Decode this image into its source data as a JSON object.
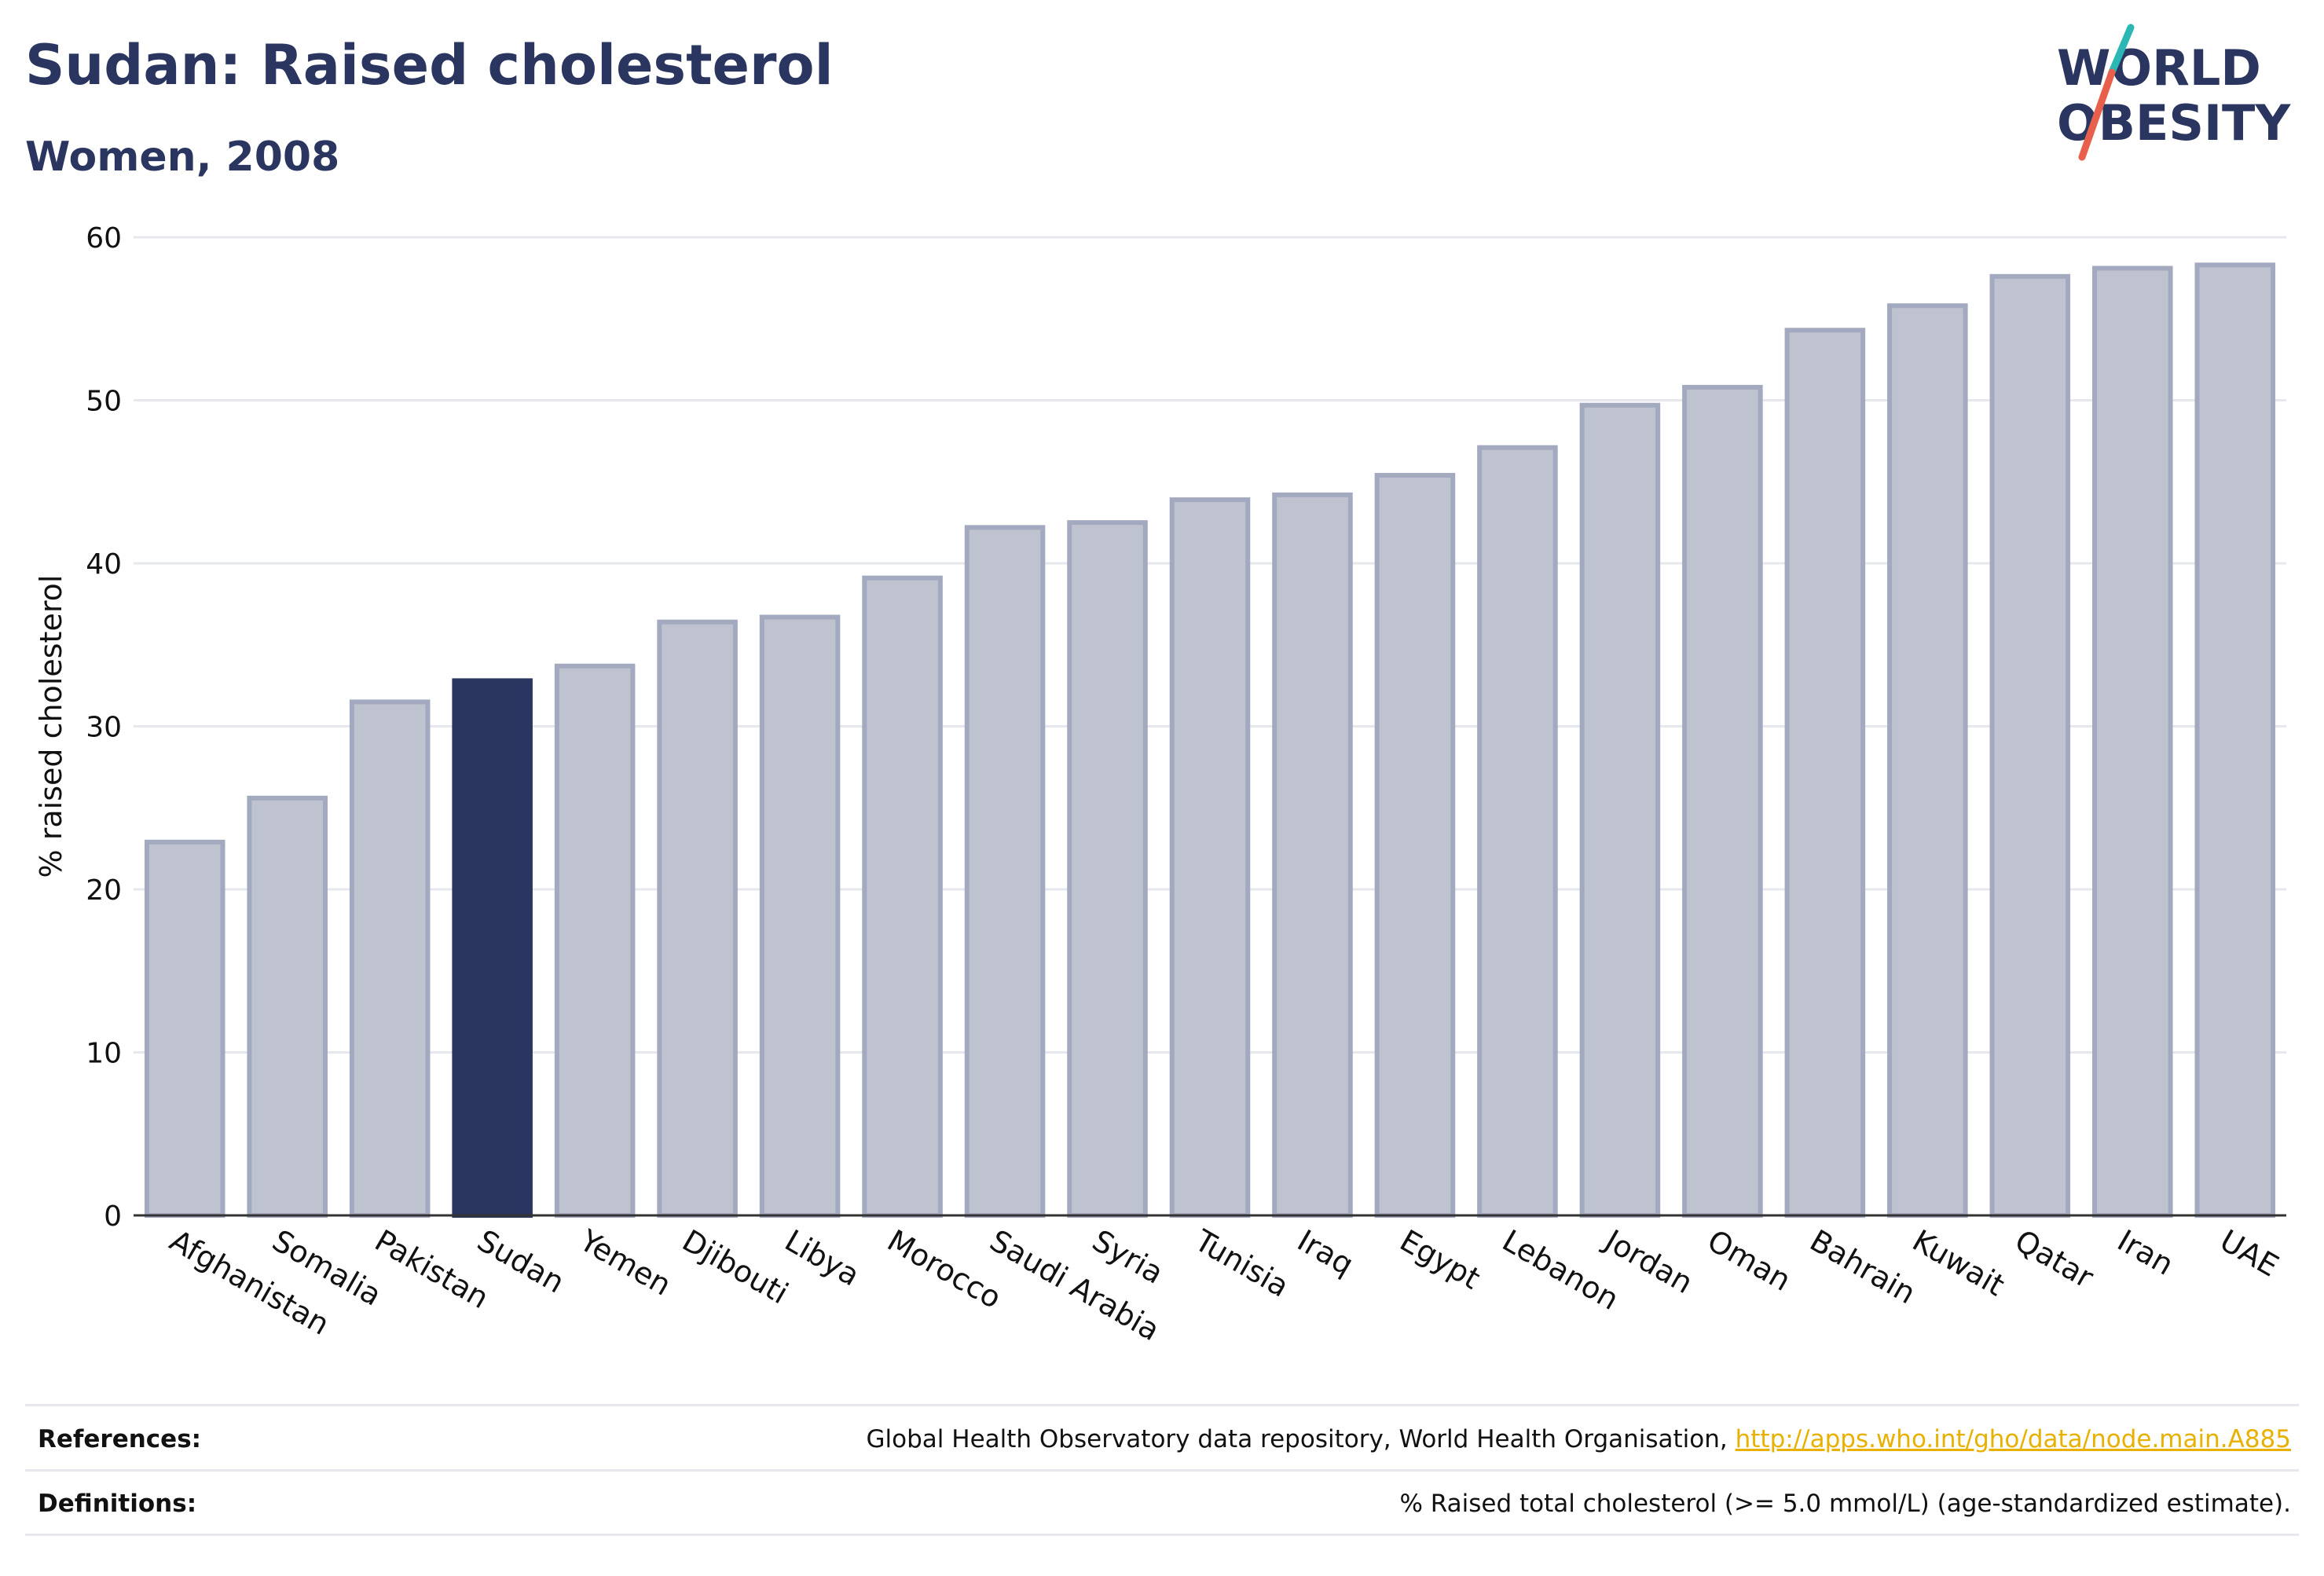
{
  "header": {
    "title": "Sudan: Raised cholesterol",
    "subtitle": "Women, 2008"
  },
  "logo": {
    "line1": "WORLD",
    "line2": "OBESITY",
    "colors": {
      "text": "#2a3560",
      "slash_top": "#2bb7b3",
      "slash_bottom": "#e8604c"
    }
  },
  "chart_data": {
    "type": "bar",
    "categories": [
      "Afghanistan",
      "Somalia",
      "Pakistan",
      "Sudan",
      "Yemen",
      "Djibouti",
      "Libya",
      "Morocco",
      "Saudi Arabia",
      "Syria",
      "Tunisia",
      "Iraq",
      "Egypt",
      "Lebanon",
      "Jordan",
      "Oman",
      "Bahrain",
      "Kuwait",
      "Qatar",
      "Iran",
      "UAE"
    ],
    "values": [
      22.9,
      25.6,
      31.5,
      32.8,
      33.7,
      36.4,
      36.7,
      39.1,
      42.2,
      42.5,
      43.9,
      44.2,
      45.4,
      47.1,
      49.7,
      50.8,
      54.3,
      55.8,
      57.6,
      58.1,
      58.3
    ],
    "highlight": "Sudan",
    "ylabel": "% raised cholesterol",
    "xlabel": "",
    "ylim": [
      0,
      60
    ],
    "yticks": [
      0,
      10,
      20,
      30,
      40,
      50,
      60
    ],
    "grid": true,
    "colors": {
      "bar": "#bfc3d0",
      "bar_edge": "#a3a9bf",
      "highlight": "#2a3560",
      "grid": "#e6e8ee",
      "axis": "#333333"
    }
  },
  "footer": {
    "references_label": "References:",
    "references_text": "Global Health Observatory data repository, World Health Organisation, ",
    "references_link": "http://apps.who.int/gho/data/node.main.A885",
    "definitions_label": "Definitions:",
    "definitions_text": "% Raised total cholesterol (>= 5.0 mmol/L) (age-standardized estimate)."
  }
}
